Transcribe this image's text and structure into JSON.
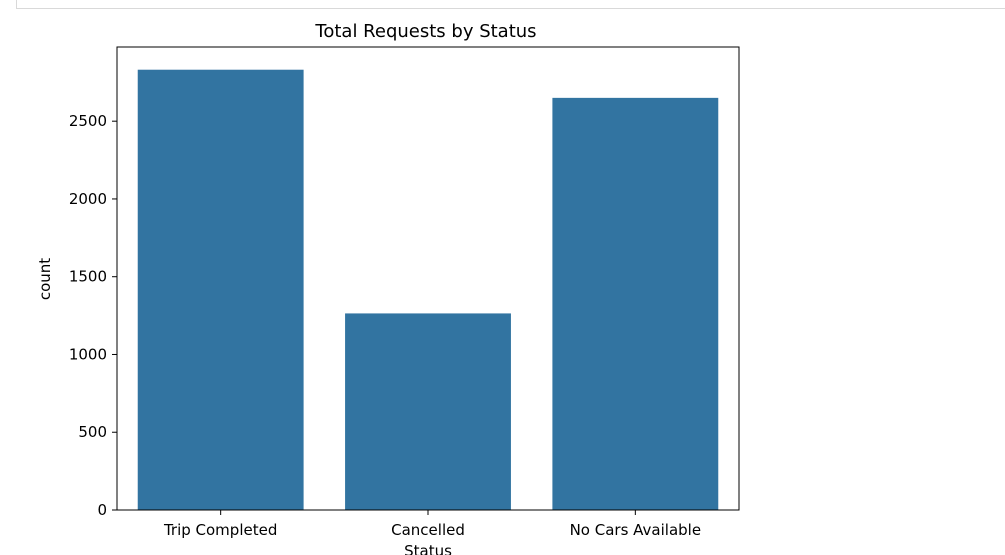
{
  "chart_data": {
    "type": "bar",
    "title": "Total Requests by Status",
    "xlabel": "Status",
    "ylabel": "count",
    "categories": [
      "Trip Completed",
      "Cancelled",
      "No Cars Available"
    ],
    "values": [
      2831,
      1264,
      2650
    ],
    "ylim": [
      0,
      2977
    ],
    "yticks": [
      0,
      500,
      1000,
      1500,
      2000,
      2500
    ],
    "bar_color": "#3274a1",
    "grid": false,
    "legend": false
  }
}
